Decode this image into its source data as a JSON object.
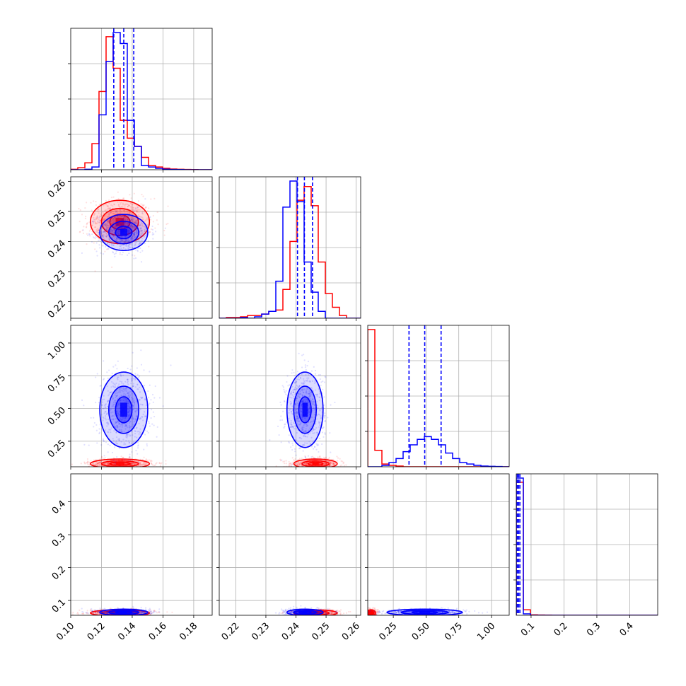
{
  "chart_data": {
    "type": "corner",
    "title": "",
    "parameters": [
      {
        "key": "p1",
        "range": [
          0.1,
          0.192
        ],
        "ticks": [
          0.1,
          0.12,
          0.14,
          0.16,
          0.18
        ],
        "tick_labels": [
          "0.10",
          "0.12",
          "0.14",
          "0.16",
          "0.18"
        ]
      },
      {
        "key": "p2",
        "range": [
          0.2145,
          0.2615
        ],
        "ticks": [
          0.22,
          0.23,
          0.24,
          0.25,
          0.26
        ],
        "tick_labels": [
          "0.22",
          "0.23",
          "0.24",
          "0.25",
          "0.26"
        ]
      },
      {
        "key": "p3",
        "range": [
          0.055,
          1.135
        ],
        "ticks": [
          0.25,
          0.5,
          0.75,
          1.0
        ],
        "tick_labels": [
          "0.25",
          "0.50",
          "0.75",
          "1.00"
        ]
      },
      {
        "key": "p4",
        "range": [
          0.055,
          0.485
        ],
        "ticks": [
          0.1,
          0.2,
          0.3,
          0.4
        ],
        "tick_labels": [
          "0.1",
          "0.2",
          "0.3",
          "0.4"
        ]
      }
    ],
    "series": [
      {
        "color": "#ff0000",
        "means": [
          0.132,
          0.2465,
          0.078,
          0.062
        ],
        "sds": [
          0.008,
          0.003,
          0.015,
          0.004
        ]
      },
      {
        "color": "#0000ff",
        "means": [
          0.1345,
          0.243,
          0.49,
          0.064
        ],
        "sds": [
          0.0065,
          0.0025,
          0.12,
          0.004
        ],
        "quantiles": [
          [
            0.128,
            0.1345,
            0.141
          ],
          [
            0.2405,
            0.2428,
            0.2455
          ],
          [
            0.37,
            0.49,
            0.615
          ],
          [
            0.058,
            0.062,
            0.066
          ]
        ]
      }
    ],
    "histograms": [
      {
        "bin_edges": [
          0.1,
          0.1046,
          0.1092,
          0.1138,
          0.1184,
          0.123,
          0.1276,
          0.1322,
          0.1368,
          0.1414,
          0.146,
          0.1506,
          0.1552,
          0.1598,
          0.1644,
          0.169,
          0.1736,
          0.1782,
          0.1828,
          0.1874,
          0.192
        ],
        "counts": {
          "red": [
            0.003,
            0.015,
            0.05,
            0.19,
            0.57,
            0.97,
            0.74,
            0.36,
            0.23,
            0.17,
            0.09,
            0.03,
            0.02,
            0.01,
            0.005,
            0.003,
            0.002,
            0.001,
            0.0,
            0.0
          ],
          "blue": [
            0.0,
            0.0,
            0.003,
            0.02,
            0.4,
            0.79,
            1.0,
            0.92,
            0.36,
            0.17,
            0.03,
            0.02,
            0.01,
            0.004,
            0.002,
            0.001,
            0.0,
            0.0,
            0.0,
            0.0
          ]
        }
      },
      {
        "bin_edges": [
          0.2145,
          0.21685,
          0.2192,
          0.22155,
          0.2239,
          0.22625,
          0.2286,
          0.23095,
          0.2333,
          0.23565,
          0.238,
          0.24035,
          0.2427,
          0.24505,
          0.2474,
          0.24975,
          0.2521,
          0.25445,
          0.2568,
          0.25915,
          0.2615
        ],
        "counts": {
          "red": [
            0.0,
            0.005,
            0.005,
            0.01,
            0.02,
            0.02,
            0.03,
            0.05,
            0.06,
            0.21,
            0.56,
            0.86,
            0.96,
            0.82,
            0.41,
            0.18,
            0.08,
            0.02,
            0.0,
            0.0
          ],
          "blue": [
            0.0,
            0.0,
            0.0,
            0.005,
            0.0,
            0.01,
            0.03,
            0.05,
            0.27,
            0.81,
            1.0,
            0.85,
            0.41,
            0.19,
            0.05,
            0.0,
            0.0,
            0.0,
            0.0,
            0.0
          ]
        }
      },
      {
        "bin_edges": [
          0.055,
          0.109,
          0.163,
          0.217,
          0.271,
          0.325,
          0.379,
          0.433,
          0.487,
          0.541,
          0.595,
          0.649,
          0.703,
          0.757,
          0.811,
          0.865,
          0.919,
          0.973,
          1.027,
          1.081,
          1.135
        ],
        "counts": {
          "red": [
            1.0,
            0.12,
            0.02,
            0.01,
            0.005,
            0.0,
            0.0,
            0.0,
            0.0,
            0.0,
            0.0,
            0.0,
            0.0,
            0.0,
            0.0,
            0.0,
            0.0,
            0.0,
            0.0,
            0.0
          ],
          "blue": [
            0.0,
            0.0,
            0.01,
            0.03,
            0.06,
            0.11,
            0.16,
            0.2,
            0.22,
            0.2,
            0.16,
            0.1,
            0.06,
            0.03,
            0.02,
            0.01,
            0.005,
            0.003,
            0.002,
            0.0
          ]
        }
      },
      {
        "bin_edges": [
          0.055,
          0.0765,
          0.098,
          0.1195,
          0.141,
          0.1625,
          0.184,
          0.2055,
          0.227,
          0.2485,
          0.27,
          0.2915,
          0.313,
          0.3345,
          0.356,
          0.3775,
          0.399,
          0.4205,
          0.442,
          0.4635,
          0.485
        ],
        "counts": {
          "red": [
            0.97,
            0.04,
            0.003,
            0.002,
            0.001,
            0.0,
            0.0,
            0.0,
            0.0,
            0.0,
            0.0,
            0.0,
            0.0,
            0.0,
            0.0,
            0.0,
            0.0,
            0.0,
            0.0,
            0.0
          ],
          "blue": [
            1.0,
            0.01,
            0.0,
            0.0,
            0.0,
            0.0,
            0.0,
            0.0,
            0.0,
            0.0,
            0.0,
            0.0,
            0.0,
            0.0,
            0.0,
            0.0,
            0.0,
            0.0,
            0.0,
            0.0
          ]
        }
      }
    ],
    "grid": true,
    "legend": "none"
  }
}
